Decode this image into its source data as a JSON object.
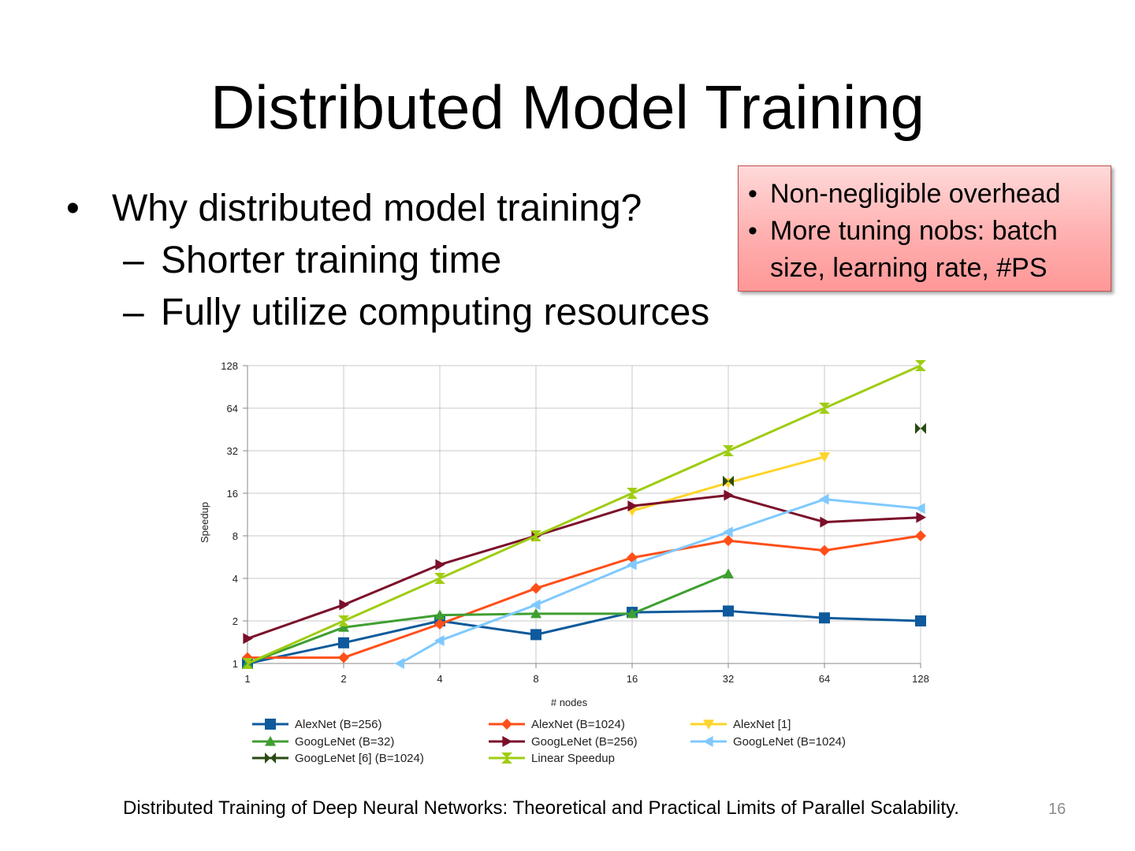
{
  "slide": {
    "title": "Distributed Model Training",
    "bullet": "Why distributed model training?",
    "sub_bullets": [
      "Shorter training time",
      "Fully utilize computing resources"
    ],
    "callout": [
      "Non-negligible overhead",
      "More tuning nobs: batch size, learning rate, #PS"
    ],
    "footer": "Distributed Training of Deep Neural Networks: Theoretical and Practical Limits of Parallel Scalability.",
    "page_number": "16",
    "bullet_glyph": "•",
    "dash_glyph": "–"
  },
  "chart_data": {
    "type": "line",
    "xlabel": "# nodes",
    "ylabel": "Speedup",
    "x_scale": "log2",
    "y_scale": "log2",
    "x_ticks": [
      1,
      2,
      4,
      8,
      16,
      32,
      64,
      128
    ],
    "y_ticks": [
      1,
      2,
      4,
      8,
      16,
      32,
      64,
      128
    ],
    "xlim": [
      1,
      128
    ],
    "ylim": [
      1,
      128
    ],
    "grid": true,
    "legend_position": "bottom",
    "series": [
      {
        "name": "AlexNet (B=256)",
        "color": "#0e5a9c",
        "marker": "square",
        "x": [
          1,
          2,
          4,
          8,
          16,
          32,
          64,
          128
        ],
        "y": [
          1.0,
          1.4,
          2.0,
          1.6,
          2.3,
          2.35,
          2.1,
          2.0
        ]
      },
      {
        "name": "AlexNet (B=1024)",
        "color": "#ff4f19",
        "marker": "diamond",
        "x": [
          1,
          2,
          4,
          8,
          16,
          32,
          64,
          128
        ],
        "y": [
          1.1,
          1.1,
          1.9,
          3.4,
          5.6,
          7.4,
          6.3,
          8.0
        ]
      },
      {
        "name": "AlexNet [1]",
        "color": "#ffd42a",
        "marker": "triangle-down",
        "x": [
          16,
          32,
          64
        ],
        "y": [
          12.0,
          19.0,
          29.0
        ]
      },
      {
        "name": "GoogLeNet (B=32)",
        "color": "#3f9f31",
        "marker": "triangle-up",
        "x": [
          1,
          2,
          4,
          8,
          16,
          32
        ],
        "y": [
          1.0,
          1.8,
          2.2,
          2.25,
          2.25,
          4.3
        ]
      },
      {
        "name": "GoogLeNet (B=256)",
        "color": "#7b0f2a",
        "marker": "triangle-right",
        "x": [
          1,
          2,
          4,
          8,
          16,
          32,
          64,
          128
        ],
        "y": [
          1.5,
          2.6,
          5.0,
          8.0,
          13.0,
          15.5,
          10.0,
          10.8
        ]
      },
      {
        "name": "GoogLeNet (B=1024)",
        "color": "#7fc9ff",
        "marker": "triangle-left",
        "x": [
          3,
          4,
          8,
          16,
          32,
          64,
          128
        ],
        "y": [
          1.0,
          1.45,
          2.6,
          5.0,
          8.5,
          14.5,
          12.5
        ]
      },
      {
        "name": "GoogLeNet [6] (B=1024)",
        "color": "#2a4a14",
        "marker": "bowtie",
        "x": [
          32,
          128
        ],
        "y": [
          19.5,
          46.0
        ],
        "line": false
      },
      {
        "name": "Linear Speedup",
        "color": "#9fcc12",
        "marker": "hourglass",
        "x": [
          1,
          2,
          4,
          8,
          16,
          32,
          64,
          128
        ],
        "y": [
          1,
          2,
          4,
          8,
          16,
          32,
          64,
          128
        ]
      }
    ]
  }
}
